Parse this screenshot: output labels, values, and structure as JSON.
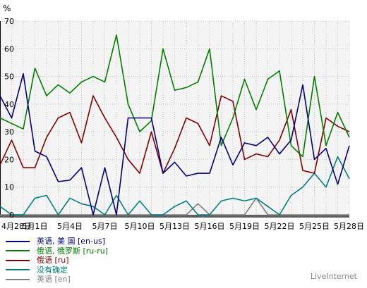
{
  "chart_data": {
    "type": "line",
    "ylabel": "%",
    "ylim": [
      0,
      70
    ],
    "yticks": [
      0,
      10,
      20,
      30,
      40,
      50,
      60,
      70
    ],
    "grid": true,
    "xtick_labels": [
      "4月28日",
      "5月1日",
      "5月4日",
      "5月7日",
      "5月10日",
      "5月13日",
      "5月16日",
      "5月19日",
      "5月22日",
      "5月25日",
      "5月28日"
    ],
    "xtick_indices": [
      0,
      3,
      6,
      9,
      12,
      15,
      18,
      21,
      24,
      27,
      30
    ],
    "n_points": 31,
    "legend_position": "bottom-left",
    "series": [
      {
        "name": "英语, 美 国 [en-us]",
        "color": "#000080",
        "values": [
          43,
          35,
          51,
          23,
          21,
          12,
          12.5,
          17,
          0,
          17,
          0,
          35,
          35,
          35,
          15,
          19,
          14,
          15,
          15,
          28,
          18,
          26,
          25,
          28,
          22,
          27,
          47,
          20,
          24,
          11,
          25
        ]
      },
      {
        "name": "俄语, 俄罗斯 [ru-ru]",
        "color": "#008000",
        "values": [
          35,
          33,
          31,
          53,
          43,
          47,
          44,
          48,
          50,
          48,
          65,
          40,
          30,
          34,
          60,
          45,
          46,
          48,
          60,
          25,
          35,
          49,
          38,
          49,
          52,
          25,
          21,
          50,
          25,
          37,
          28
        ]
      },
      {
        "name": "俄语 [ru]",
        "color": "#800000",
        "values": [
          18,
          27,
          17,
          17,
          28,
          35,
          37,
          26,
          43,
          35,
          28,
          20,
          15,
          30,
          15,
          24,
          35,
          33,
          25,
          43,
          41,
          20,
          22,
          21,
          27,
          38,
          16,
          15,
          35,
          32,
          30
        ]
      },
      {
        "name": "没有确定",
        "color": "#008080",
        "values": [
          3,
          0,
          0,
          6,
          7,
          0,
          6,
          4,
          3,
          0,
          7,
          0,
          5,
          0,
          0,
          3,
          5,
          0,
          0,
          5,
          6,
          5,
          6,
          3,
          0,
          7,
          10,
          15,
          10,
          21,
          13
        ]
      },
      {
        "name": "英语 [en]",
        "color": "#808080",
        "values": [
          0,
          0,
          0,
          0,
          0,
          0,
          0,
          0,
          0,
          0,
          0,
          0,
          0,
          0,
          0,
          0,
          0,
          4,
          0,
          0,
          0,
          0,
          6,
          0,
          0,
          0,
          0,
          0,
          0,
          0,
          0
        ]
      }
    ]
  },
  "brand": "LiveInternet"
}
